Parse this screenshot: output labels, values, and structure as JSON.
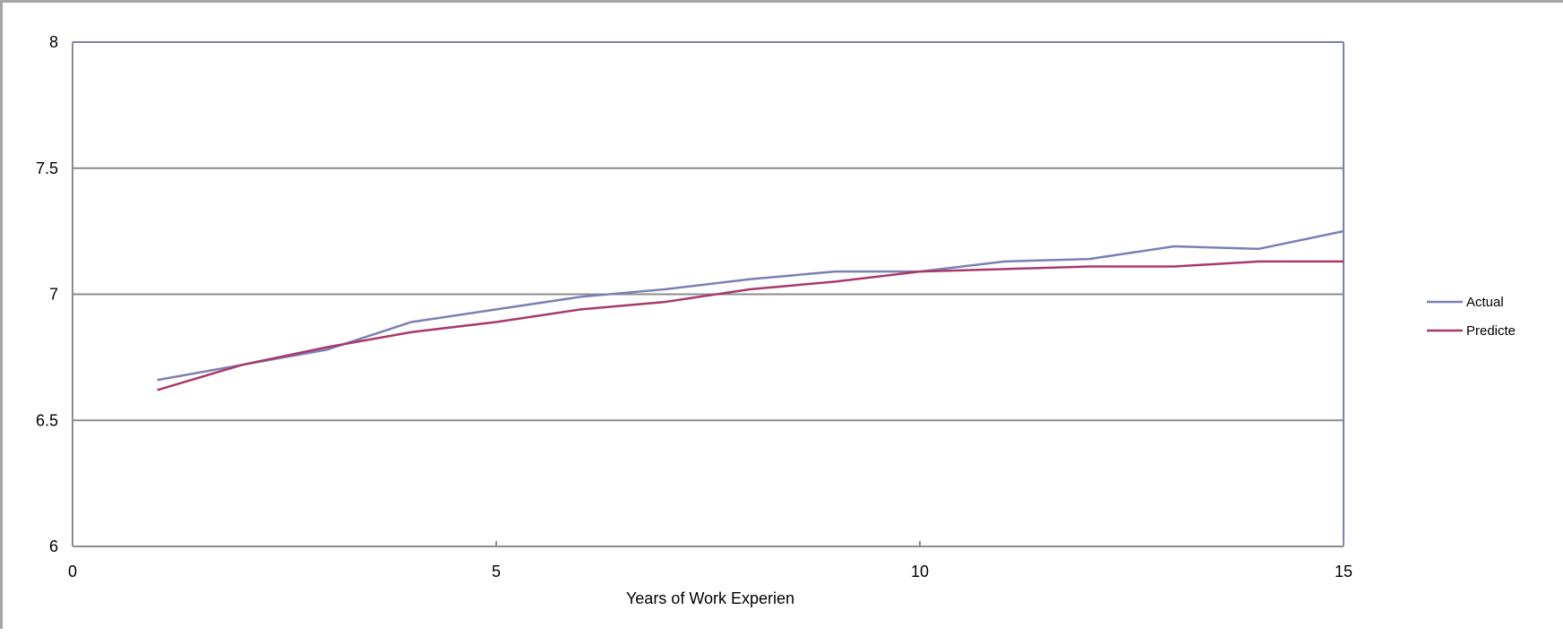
{
  "chart_data": {
    "type": "line",
    "title": "",
    "xlabel": "Years of Work Experien",
    "ylabel": "",
    "xlim": [
      0,
      15
    ],
    "ylim": [
      6,
      8
    ],
    "x_ticks": [
      0,
      5,
      10,
      15
    ],
    "y_ticks": [
      6,
      6.5,
      7,
      7.5,
      8
    ],
    "x_tick_labels": [
      "0",
      "5",
      "10",
      "15"
    ],
    "y_tick_labels": [
      "6",
      "6.5",
      "7",
      "7.5",
      "8"
    ],
    "grid": "horizontal",
    "legend_position": "right",
    "x": [
      1,
      2,
      3,
      4,
      5,
      6,
      7,
      8,
      9,
      10,
      11,
      12,
      13,
      14,
      15
    ],
    "series": [
      {
        "name": "Actual",
        "color": "#7b7fb5",
        "values": [
          6.66,
          6.72,
          6.78,
          6.89,
          6.94,
          6.99,
          7.02,
          7.06,
          7.09,
          7.09,
          7.13,
          7.14,
          7.19,
          7.18,
          7.25
        ]
      },
      {
        "name": "Predicted",
        "color": "#a8396a",
        "values": [
          6.62,
          6.72,
          6.79,
          6.85,
          6.89,
          6.94,
          6.97,
          7.02,
          7.05,
          7.09,
          7.1,
          7.11,
          7.11,
          7.13,
          7.13
        ]
      }
    ],
    "legend": [
      "Actual",
      "Predicte"
    ]
  }
}
